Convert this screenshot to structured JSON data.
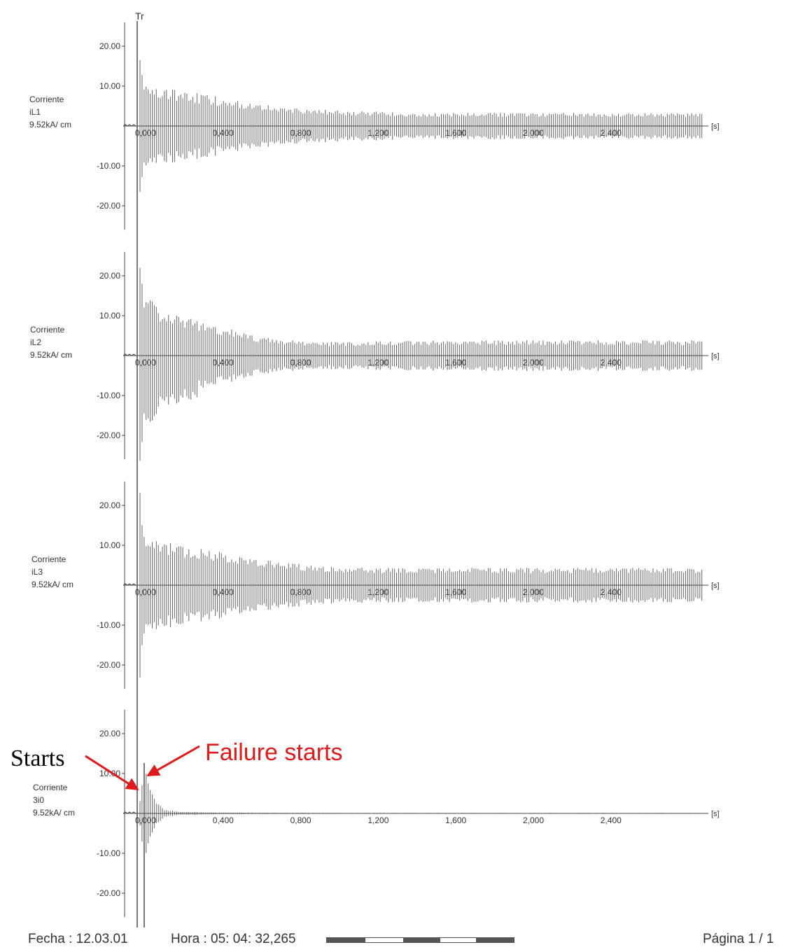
{
  "trigger_label": "Tr",
  "chart_data": [
    {
      "type": "line",
      "channel": "iL1",
      "label_lines": [
        "Corriente",
        "iL1",
        "9.52kA/ cm"
      ],
      "yticks": [
        20.0,
        10.0,
        -10.0,
        -20.0
      ],
      "ytick_labels": [
        "20.00",
        "10.00",
        "-10.00",
        "-20.00"
      ],
      "xticks": [
        0.0,
        0.4,
        0.8,
        1.2,
        1.6,
        2.0,
        2.4
      ],
      "xtick_labels": [
        "0,000",
        "0,400",
        "0,800",
        "1,200",
        "1,600",
        "2,000",
        "2,400"
      ],
      "x_unit": "[s]",
      "xlim": [
        -0.03,
        2.95
      ],
      "ylim": [
        -25,
        25
      ],
      "envelope_t": [
        0.0,
        0.02,
        0.1,
        0.3,
        0.6,
        0.9,
        1.2,
        1.5,
        1.8,
        2.1,
        2.4,
        2.7,
        2.95
      ],
      "envelope_amp": [
        22,
        9.5,
        9.0,
        7.5,
        5.0,
        3.8,
        3.3,
        3.0,
        3.0,
        3.0,
        3.0,
        3.0,
        3.0
      ]
    },
    {
      "type": "line",
      "channel": "iL2",
      "label_lines": [
        "Corriente",
        "iL2",
        "9.52kA/ cm"
      ],
      "yticks": [
        20.0,
        10.0,
        -10.0,
        -20.0
      ],
      "ytick_labels": [
        "20.00",
        "10.00",
        "-10.00",
        "-20.00"
      ],
      "xticks": [
        0.0,
        0.4,
        0.8,
        1.2,
        1.6,
        2.0,
        2.4
      ],
      "xtick_labels": [
        "0,000",
        "0,400",
        "0,800",
        "1,200",
        "1,600",
        "2,000",
        "2,400"
      ],
      "x_unit": "[s]",
      "xlim": [
        -0.03,
        2.95
      ],
      "ylim": [
        -25,
        25
      ],
      "envelope_t": [
        0.0,
        0.02,
        0.1,
        0.3,
        0.6,
        0.9,
        1.2,
        1.5,
        1.8,
        2.1,
        2.4,
        2.7,
        2.95
      ],
      "envelope_amp": [
        20,
        15,
        11.0,
        8.0,
        4.5,
        3.0,
        3.3,
        3.5,
        3.5,
        3.5,
        3.5,
        3.5,
        3.5
      ]
    },
    {
      "type": "line",
      "channel": "iL3",
      "label_lines": [
        "Corriente",
        "iL3",
        "9.52kA/ cm"
      ],
      "yticks": [
        20.0,
        10.0,
        -10.0,
        -20.0
      ],
      "ytick_labels": [
        "20.00",
        "10.00",
        "-10.00",
        "-20.00"
      ],
      "xticks": [
        0.0,
        0.4,
        0.8,
        1.2,
        1.6,
        2.0,
        2.4
      ],
      "xtick_labels": [
        "0,000",
        "0,400",
        "0,800",
        "1,200",
        "1,600",
        "2,000",
        "2,400"
      ],
      "x_unit": "[s]",
      "xlim": [
        -0.03,
        2.95
      ],
      "ylim": [
        -25,
        25
      ],
      "envelope_t": [
        0.0,
        0.02,
        0.1,
        0.3,
        0.6,
        0.9,
        1.2,
        1.5,
        1.8,
        2.1,
        2.4,
        2.7,
        2.95
      ],
      "envelope_amp": [
        25,
        12.0,
        10.5,
        8.5,
        6.0,
        4.5,
        4.0,
        4.0,
        4.0,
        4.0,
        4.0,
        4.0,
        4.0
      ]
    },
    {
      "type": "line",
      "channel": "3i0",
      "label_lines": [
        "Corriente",
        "3i0",
        "9.52kA/ cm"
      ],
      "yticks": [
        20.0,
        10.0,
        -10.0,
        -20.0
      ],
      "ytick_labels": [
        "20.00",
        "10.00",
        "-10.00",
        "-20.00"
      ],
      "xticks": [
        0.0,
        0.4,
        0.8,
        1.2,
        1.6,
        2.0,
        2.4
      ],
      "xtick_labels": [
        "0,000",
        "0,400",
        "0,800",
        "1,200",
        "1,600",
        "2,000",
        "2,400"
      ],
      "x_unit": "[s]",
      "xlim": [
        -0.03,
        2.95
      ],
      "ylim": [
        -25,
        25
      ],
      "envelope_t": [
        0.0,
        0.02,
        0.05,
        0.08,
        0.12,
        0.2,
        0.4,
        1.0,
        2.95
      ],
      "envelope_amp": [
        3.0,
        11.0,
        6.0,
        3.0,
        1.0,
        0.4,
        0.2,
        0.1,
        0.1
      ]
    }
  ],
  "annotations": {
    "starts": "Starts",
    "failure_starts": "Failure starts"
  },
  "footer": {
    "date_label": "Fecha : 12.03.01",
    "time_label": "Hora  : 05: 04: 32,265",
    "page_label": "Página 1 / 1"
  }
}
